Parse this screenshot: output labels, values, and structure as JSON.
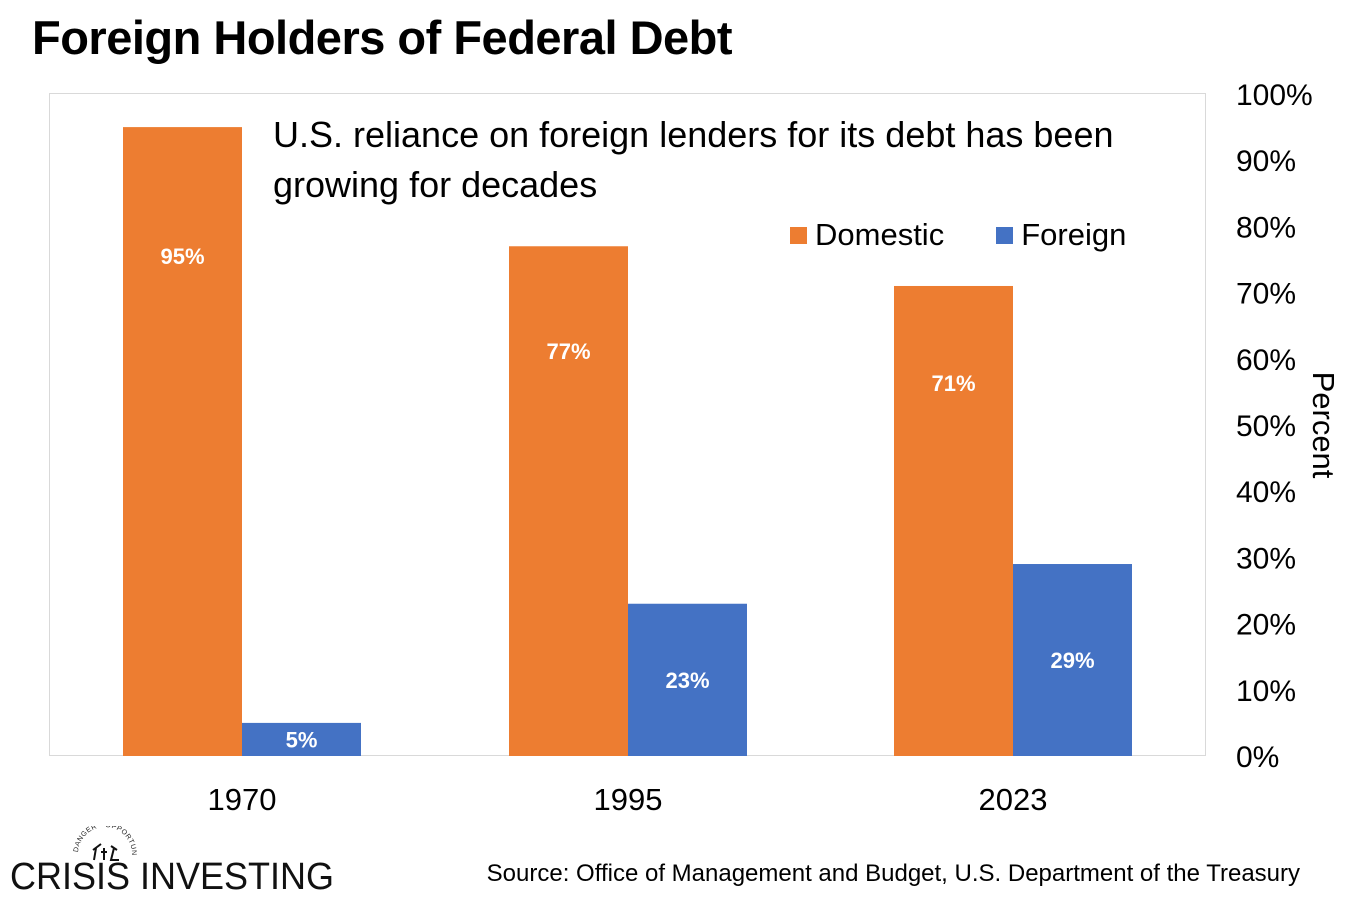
{
  "title": "Foreign Holders of Federal Debt",
  "annotation": "U.S. reliance on foreign lenders for its debt has been growing for decades",
  "source": "Source: Office of Management and Budget, U.S. Department of the Treasury",
  "logo": {
    "name": "CRISIS INVESTING",
    "tagline": "DANGER • OPPORTUNITY"
  },
  "colors": {
    "domestic": "#ED7D31",
    "foreign": "#4472C4",
    "gridframe": "#D9D9D9"
  },
  "chart_data": {
    "type": "bar",
    "title": "Foreign Holders of Federal Debt",
    "categories": [
      "1970",
      "1995",
      "2023"
    ],
    "series": [
      {
        "name": "Domestic",
        "values": [
          95,
          77,
          71
        ],
        "labels": [
          "95%",
          "77%",
          "71%"
        ]
      },
      {
        "name": "Foreign",
        "values": [
          5,
          23,
          29
        ],
        "labels": [
          "5%",
          "23%",
          "29%"
        ]
      }
    ],
    "ylabel": "Percent",
    "ylim": [
      0,
      100
    ],
    "yticks": [
      "0%",
      "10%",
      "20%",
      "30%",
      "40%",
      "50%",
      "60%",
      "70%",
      "80%",
      "90%",
      "100%"
    ],
    "y_axis_side": "right",
    "grid": false,
    "legend": "top-right"
  }
}
